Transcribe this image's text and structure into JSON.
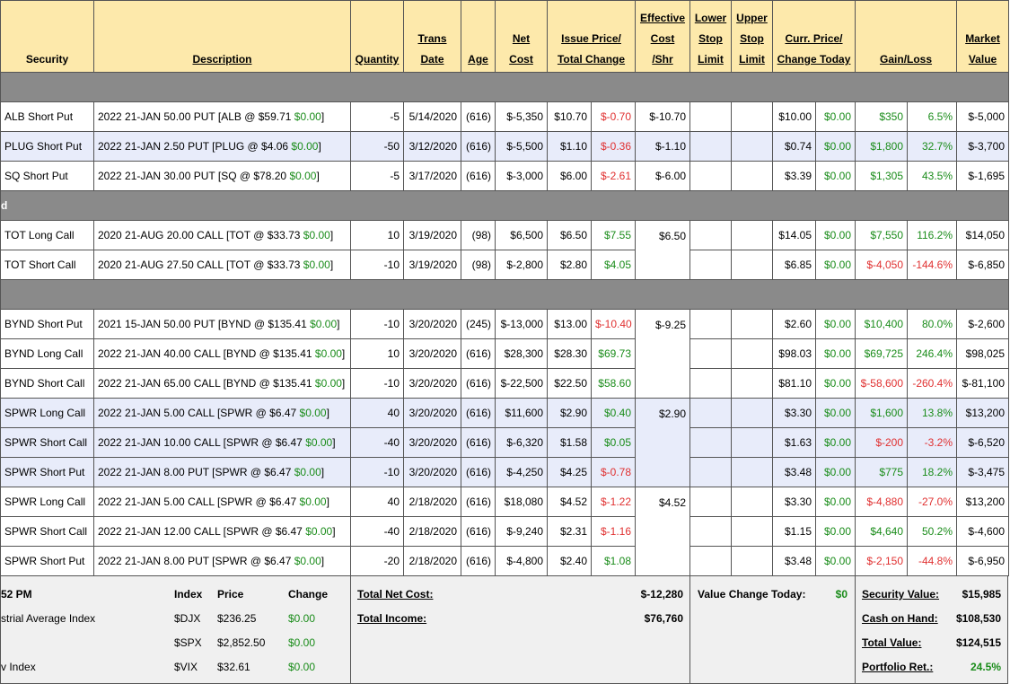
{
  "header": [
    [
      "Security"
    ],
    [
      "Description"
    ],
    [
      "Quantity"
    ],
    [
      "Trans",
      "Date"
    ],
    [
      "Age"
    ],
    [
      "Net",
      "Cost"
    ],
    [
      "Issue Price/",
      "Total Change"
    ],
    [
      "Effective",
      "Cost",
      "/Shr"
    ],
    [
      "Lower",
      "Stop",
      "Limit"
    ],
    [
      "Upper",
      "Stop",
      "Limit"
    ],
    [
      "Curr. Price/",
      "Change Today"
    ],
    [
      "Gain/Loss"
    ],
    [
      "Market",
      "Value"
    ]
  ],
  "sections": [
    {
      "rows": [
        {
          "security": "ALB Short Put",
          "desc": {
            "text": "2022 21-JAN 50.00 PUT [ALB @ $59.71",
            "change": "$0.00",
            "close": "]"
          },
          "qty": "-5",
          "date": "5/14/2020",
          "age": "(616)",
          "net_cost": "$-5,350",
          "issue_price": "$10.70",
          "total_change": "$-0.70",
          "eff_cost": "$-10.70",
          "curr_price": "$10.00",
          "change_today": "$0.00",
          "gain": "$350",
          "gain_pct": "6.5%",
          "market_value": "$-5,000"
        },
        {
          "security": "PLUG Short Put",
          "desc": {
            "text": "2022 21-JAN 2.50 PUT [PLUG @ $4.06",
            "change": "$0.00",
            "close": "]"
          },
          "qty": "-50",
          "date": "3/12/2020",
          "age": "(616)",
          "net_cost": "$-5,500",
          "issue_price": "$1.10",
          "total_change": "$-0.36",
          "eff_cost": "$-1.10",
          "curr_price": "$0.74",
          "change_today": "$0.00",
          "gain": "$1,800",
          "gain_pct": "32.7%",
          "market_value": "$-3,700",
          "highlight": true
        },
        {
          "security": "SQ Short Put",
          "desc": {
            "text": "2022 21-JAN 30.00 PUT [SQ @ $78.20",
            "change": "$0.00",
            "close": "]"
          },
          "qty": "-5",
          "date": "3/17/2020",
          "age": "(616)",
          "net_cost": "$-3,000",
          "issue_price": "$6.00",
          "total_change": "$-2.61",
          "eff_cost": "$-6.00",
          "curr_price": "$3.39",
          "change_today": "$0.00",
          "gain": "$1,305",
          "gain_pct": "43.5%",
          "market_value": "$-1,695"
        }
      ]
    },
    {
      "label": "d",
      "rows": [
        {
          "security": "TOT Long Call",
          "desc": {
            "text": "2020 21-AUG 20.00 CALL [TOT @ $33.73",
            "change": "$0.00",
            "close": "]"
          },
          "qty": "10",
          "date": "3/19/2020",
          "age": "(98)",
          "net_cost": "$6,500",
          "issue_price": "$6.50",
          "total_change": "$7.55",
          "eff_cost": "$6.50",
          "curr_price": "$14.05",
          "change_today": "$0.00",
          "gain": "$7,550",
          "gain_pct": "116.2%",
          "market_value": "$14,050"
        },
        {
          "security": "TOT Short Call",
          "desc": {
            "text": "2020 21-AUG 27.50 CALL [TOT @ $33.73",
            "change": "$0.00",
            "close": "]"
          },
          "qty": "-10",
          "date": "3/19/2020",
          "age": "(98)",
          "net_cost": "$-2,800",
          "issue_price": "$2.80",
          "total_change": "$4.05",
          "curr_price": "$6.85",
          "change_today": "$0.00",
          "gain": "$-4,050",
          "gain_pct": "-144.6%",
          "market_value": "$-6,850"
        }
      ]
    },
    {
      "rows": [
        {
          "security": "BYND Short Put",
          "desc": {
            "text": "2021 15-JAN 50.00 PUT [BYND @ $135.41",
            "change": "$0.00",
            "close": "]"
          },
          "qty": "-10",
          "date": "3/20/2020",
          "age": "(245)",
          "net_cost": "$-13,000",
          "issue_price": "$13.00",
          "total_change": "$-10.40",
          "eff_cost": "$-9.25",
          "curr_price": "$2.60",
          "change_today": "$0.00",
          "gain": "$10,400",
          "gain_pct": "80.0%",
          "market_value": "$-2,600"
        },
        {
          "security": "BYND Long Call",
          "desc": {
            "text": "2022 21-JAN 40.00 CALL [BYND @ $135.41",
            "change": "$0.00",
            "close": "]"
          },
          "qty": "10",
          "date": "3/20/2020",
          "age": "(616)",
          "net_cost": "$28,300",
          "issue_price": "$28.30",
          "total_change": "$69.73",
          "curr_price": "$98.03",
          "change_today": "$0.00",
          "gain": "$69,725",
          "gain_pct": "246.4%",
          "market_value": "$98,025"
        },
        {
          "security": "BYND Short Call",
          "desc": {
            "text": "2022 21-JAN 65.00 CALL [BYND @ $135.41",
            "change": "$0.00",
            "close": "]"
          },
          "qty": "-10",
          "date": "3/20/2020",
          "age": "(616)",
          "net_cost": "$-22,500",
          "issue_price": "$22.50",
          "total_change": "$58.60",
          "curr_price": "$81.10",
          "change_today": "$0.00",
          "gain": "$-58,600",
          "gain_pct": "-260.4%",
          "market_value": "$-81,100"
        },
        {
          "security": "SPWR Long Call",
          "desc": {
            "text": "2022 21-JAN 5.00 CALL [SPWR @ $6.47",
            "change": "$0.00",
            "close": "]"
          },
          "qty": "40",
          "date": "3/20/2020",
          "age": "(616)",
          "net_cost": "$11,600",
          "issue_price": "$2.90",
          "total_change": "$0.40",
          "eff_cost": "$2.90",
          "curr_price": "$3.30",
          "change_today": "$0.00",
          "gain": "$1,600",
          "gain_pct": "13.8%",
          "market_value": "$13,200",
          "highlight": true
        },
        {
          "security": "SPWR Short Call",
          "desc": {
            "text": "2022 21-JAN 10.00 CALL [SPWR @ $6.47",
            "change": "$0.00",
            "close": "]"
          },
          "qty": "-40",
          "date": "3/20/2020",
          "age": "(616)",
          "net_cost": "$-6,320",
          "issue_price": "$1.58",
          "total_change": "$0.05",
          "curr_price": "$1.63",
          "change_today": "$0.00",
          "gain": "$-200",
          "gain_pct": "-3.2%",
          "market_value": "$-6,520",
          "highlight": true
        },
        {
          "security": "SPWR Short Put",
          "desc": {
            "text": "2022 21-JAN 8.00 PUT [SPWR @ $6.47",
            "change": "$0.00",
            "close": "]"
          },
          "qty": "-10",
          "date": "3/20/2020",
          "age": "(616)",
          "net_cost": "$-4,250",
          "issue_price": "$4.25",
          "total_change": "$-0.78",
          "curr_price": "$3.48",
          "change_today": "$0.00",
          "gain": "$775",
          "gain_pct": "18.2%",
          "market_value": "$-3,475",
          "highlight": true
        },
        {
          "security": "SPWR Long Call",
          "desc": {
            "text": "2022 21-JAN 5.00 CALL [SPWR @ $6.47",
            "change": "$0.00",
            "close": "]"
          },
          "qty": "40",
          "date": "2/18/2020",
          "age": "(616)",
          "net_cost": "$18,080",
          "issue_price": "$4.52",
          "total_change": "$-1.22",
          "eff_cost": "$4.52",
          "curr_price": "$3.30",
          "change_today": "$0.00",
          "gain": "$-4,880",
          "gain_pct": "-27.0%",
          "market_value": "$13,200"
        },
        {
          "security": "SPWR Short Call",
          "desc": {
            "text": "2022 21-JAN 12.00 CALL [SPWR @ $6.47",
            "change": "$0.00",
            "close": "]"
          },
          "qty": "-40",
          "date": "2/18/2020",
          "age": "(616)",
          "net_cost": "$-9,240",
          "issue_price": "$2.31",
          "total_change": "$-1.16",
          "curr_price": "$1.15",
          "change_today": "$0.00",
          "gain": "$4,640",
          "gain_pct": "50.2%",
          "market_value": "$-4,600"
        },
        {
          "security": "SPWR Short Put",
          "desc": {
            "text": "2022 21-JAN 8.00 PUT [SPWR @ $6.47",
            "change": "$0.00",
            "close": "]"
          },
          "qty": "-20",
          "date": "2/18/2020",
          "age": "(616)",
          "net_cost": "$-4,800",
          "issue_price": "$2.40",
          "total_change": "$1.08",
          "curr_price": "$3.48",
          "change_today": "$0.00",
          "gain": "$-2,150",
          "gain_pct": "-44.8%",
          "market_value": "$-6,950"
        }
      ]
    }
  ],
  "footer": {
    "time": "52 PM",
    "headers": [
      "Index",
      "Price",
      "Change"
    ],
    "indices": [
      {
        "name": "strial Average Index",
        "symbol": "$DJX",
        "price": "$236.25",
        "change": "$0.00"
      },
      {
        "symbol": "$SPX",
        "price": "$2,852.50",
        "change": "$0.00"
      },
      {
        "name": "v Index",
        "symbol": "$VIX",
        "price": "$32.61",
        "change": "$0.00"
      }
    ],
    "totals": [
      {
        "label": "Total Net Cost:",
        "value": "$-12,280"
      },
      {
        "label": "Total Income:",
        "value": "$76,760"
      }
    ],
    "value_change": {
      "label": "Value Change Today:",
      "value": "$0",
      "color": "#1a8c1a"
    },
    "summary": [
      {
        "label": "Security Value:",
        "value": "$15,985"
      },
      {
        "label": "Cash on Hand:",
        "value": "$108,530"
      },
      {
        "label": "Total Value:",
        "value": "$124,515"
      },
      {
        "label": "Portfolio Ret.:",
        "value": "24.5%",
        "color": "#1a8c1a"
      }
    ]
  }
}
